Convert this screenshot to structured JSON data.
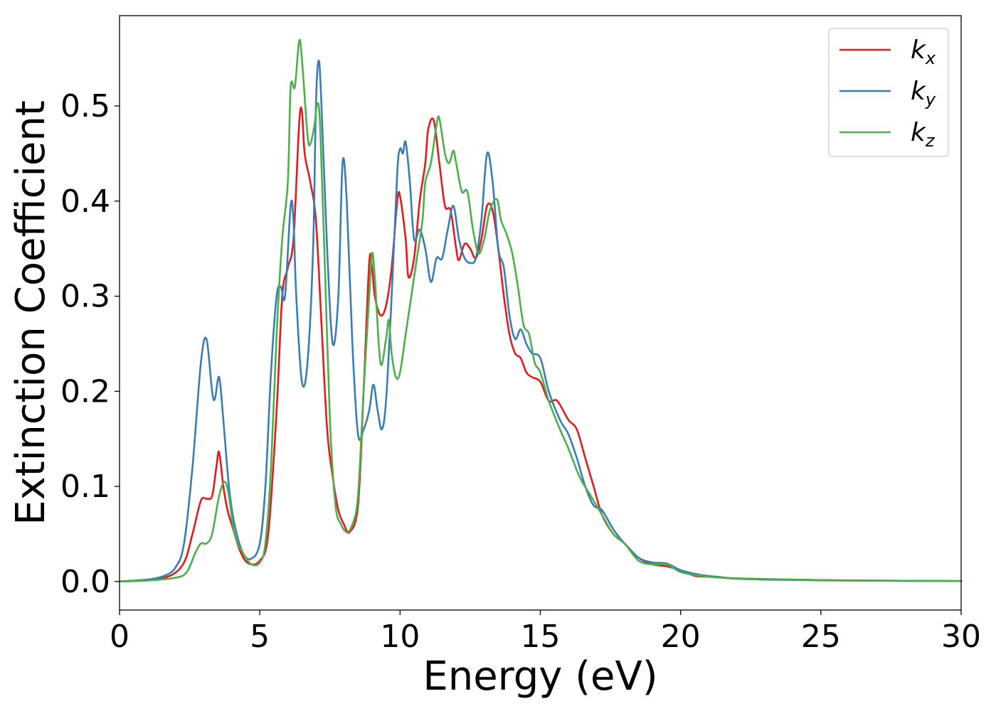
{
  "chart_data": {
    "type": "line",
    "xlabel": "Energy (eV)",
    "ylabel": "Extinction Coefficient",
    "xlim": [
      0,
      30
    ],
    "ylim": [
      -0.03,
      0.595
    ],
    "x_ticks": [
      "0",
      "5",
      "10",
      "15",
      "20",
      "25",
      "30"
    ],
    "y_ticks": [
      "0.0",
      "0.1",
      "0.2",
      "0.3",
      "0.4",
      "0.5"
    ],
    "grid": false,
    "legend_position": "top-right",
    "series": [
      {
        "name": "kx",
        "label_base": "k",
        "label_sub": "x",
        "color": "#e41a1c",
        "points": [
          [
            0,
            0
          ],
          [
            1,
            0.002
          ],
          [
            1.8,
            0.006
          ],
          [
            2.3,
            0.02
          ],
          [
            2.6,
            0.05
          ],
          [
            2.9,
            0.085
          ],
          [
            3.1,
            0.087
          ],
          [
            3.3,
            0.09
          ],
          [
            3.45,
            0.12
          ],
          [
            3.55,
            0.136
          ],
          [
            3.7,
            0.1
          ],
          [
            3.85,
            0.075
          ],
          [
            4.0,
            0.06
          ],
          [
            4.3,
            0.032
          ],
          [
            4.6,
            0.019
          ],
          [
            5.0,
            0.022
          ],
          [
            5.3,
            0.05
          ],
          [
            5.6,
            0.18
          ],
          [
            5.8,
            0.3
          ],
          [
            6.0,
            0.33
          ],
          [
            6.2,
            0.36
          ],
          [
            6.4,
            0.48
          ],
          [
            6.5,
            0.495
          ],
          [
            6.6,
            0.45
          ],
          [
            6.8,
            0.42
          ],
          [
            7.0,
            0.38
          ],
          [
            7.2,
            0.27
          ],
          [
            7.4,
            0.16
          ],
          [
            7.6,
            0.11
          ],
          [
            7.8,
            0.075
          ],
          [
            8.0,
            0.06
          ],
          [
            8.2,
            0.052
          ],
          [
            8.5,
            0.08
          ],
          [
            8.7,
            0.2
          ],
          [
            8.9,
            0.335
          ],
          [
            9.0,
            0.33
          ],
          [
            9.1,
            0.3
          ],
          [
            9.3,
            0.28
          ],
          [
            9.5,
            0.29
          ],
          [
            9.7,
            0.33
          ],
          [
            9.9,
            0.4
          ],
          [
            10.0,
            0.405
          ],
          [
            10.2,
            0.36
          ],
          [
            10.3,
            0.32
          ],
          [
            10.5,
            0.34
          ],
          [
            10.7,
            0.4
          ],
          [
            10.9,
            0.44
          ],
          [
            11.0,
            0.475
          ],
          [
            11.2,
            0.485
          ],
          [
            11.4,
            0.44
          ],
          [
            11.6,
            0.395
          ],
          [
            11.8,
            0.39
          ],
          [
            12.0,
            0.35
          ],
          [
            12.1,
            0.338
          ],
          [
            12.3,
            0.355
          ],
          [
            12.5,
            0.35
          ],
          [
            12.7,
            0.34
          ],
          [
            12.9,
            0.36
          ],
          [
            13.1,
            0.395
          ],
          [
            13.3,
            0.39
          ],
          [
            13.5,
            0.35
          ],
          [
            13.7,
            0.3
          ],
          [
            13.9,
            0.26
          ],
          [
            14.1,
            0.24
          ],
          [
            14.3,
            0.235
          ],
          [
            14.5,
            0.22
          ],
          [
            14.7,
            0.215
          ],
          [
            15.0,
            0.21
          ],
          [
            15.3,
            0.19
          ],
          [
            15.6,
            0.19
          ],
          [
            16.0,
            0.17
          ],
          [
            16.3,
            0.16
          ],
          [
            16.6,
            0.13
          ],
          [
            16.9,
            0.1
          ],
          [
            17.2,
            0.07
          ],
          [
            17.6,
            0.05
          ],
          [
            18.0,
            0.04
          ],
          [
            18.5,
            0.025
          ],
          [
            19.0,
            0.018
          ],
          [
            19.5,
            0.016
          ],
          [
            20.0,
            0.012
          ],
          [
            20.5,
            0.006
          ],
          [
            21,
            0.005
          ],
          [
            22,
            0.003
          ],
          [
            23,
            0.0025
          ],
          [
            25,
            0.0015
          ],
          [
            28,
            0.0008
          ],
          [
            30,
            0.0005
          ]
        ]
      },
      {
        "name": "ky",
        "label_base": "k",
        "label_sub": "y",
        "color": "#377eb8",
        "points": [
          [
            0,
            0
          ],
          [
            1,
            0.002
          ],
          [
            1.6,
            0.006
          ],
          [
            2.0,
            0.015
          ],
          [
            2.3,
            0.04
          ],
          [
            2.6,
            0.12
          ],
          [
            2.9,
            0.23
          ],
          [
            3.1,
            0.255
          ],
          [
            3.3,
            0.2
          ],
          [
            3.4,
            0.192
          ],
          [
            3.55,
            0.215
          ],
          [
            3.7,
            0.17
          ],
          [
            3.9,
            0.1
          ],
          [
            4.1,
            0.06
          ],
          [
            4.4,
            0.03
          ],
          [
            4.7,
            0.024
          ],
          [
            5.0,
            0.04
          ],
          [
            5.2,
            0.1
          ],
          [
            5.4,
            0.22
          ],
          [
            5.6,
            0.3
          ],
          [
            5.75,
            0.31
          ],
          [
            5.9,
            0.3
          ],
          [
            6.1,
            0.395
          ],
          [
            6.2,
            0.38
          ],
          [
            6.3,
            0.3
          ],
          [
            6.5,
            0.21
          ],
          [
            6.7,
            0.23
          ],
          [
            6.9,
            0.35
          ],
          [
            7.0,
            0.5
          ],
          [
            7.1,
            0.548
          ],
          [
            7.2,
            0.5
          ],
          [
            7.4,
            0.35
          ],
          [
            7.6,
            0.25
          ],
          [
            7.8,
            0.3
          ],
          [
            7.95,
            0.44
          ],
          [
            8.1,
            0.4
          ],
          [
            8.3,
            0.25
          ],
          [
            8.5,
            0.155
          ],
          [
            8.7,
            0.16
          ],
          [
            8.9,
            0.18
          ],
          [
            9.05,
            0.207
          ],
          [
            9.2,
            0.18
          ],
          [
            9.35,
            0.16
          ],
          [
            9.5,
            0.19
          ],
          [
            9.7,
            0.3
          ],
          [
            9.9,
            0.43
          ],
          [
            10.0,
            0.455
          ],
          [
            10.1,
            0.45
          ],
          [
            10.2,
            0.462
          ],
          [
            10.35,
            0.42
          ],
          [
            10.5,
            0.36
          ],
          [
            10.7,
            0.37
          ],
          [
            10.9,
            0.35
          ],
          [
            11.1,
            0.315
          ],
          [
            11.3,
            0.34
          ],
          [
            11.5,
            0.34
          ],
          [
            11.7,
            0.37
          ],
          [
            11.9,
            0.395
          ],
          [
            12.1,
            0.36
          ],
          [
            12.3,
            0.34
          ],
          [
            12.5,
            0.335
          ],
          [
            12.7,
            0.34
          ],
          [
            12.9,
            0.38
          ],
          [
            13.1,
            0.45
          ],
          [
            13.3,
            0.42
          ],
          [
            13.5,
            0.35
          ],
          [
            13.7,
            0.33
          ],
          [
            13.9,
            0.28
          ],
          [
            14.1,
            0.255
          ],
          [
            14.3,
            0.265
          ],
          [
            14.5,
            0.25
          ],
          [
            14.7,
            0.24
          ],
          [
            15.0,
            0.235
          ],
          [
            15.3,
            0.2
          ],
          [
            15.7,
            0.17
          ],
          [
            16.0,
            0.155
          ],
          [
            16.3,
            0.13
          ],
          [
            16.6,
            0.1
          ],
          [
            16.9,
            0.08
          ],
          [
            17.2,
            0.075
          ],
          [
            17.6,
            0.055
          ],
          [
            18.0,
            0.04
          ],
          [
            18.5,
            0.025
          ],
          [
            19.0,
            0.02
          ],
          [
            19.5,
            0.019
          ],
          [
            20.0,
            0.012
          ],
          [
            20.7,
            0.007
          ],
          [
            21.3,
            0.005
          ],
          [
            22,
            0.003
          ],
          [
            23,
            0.002
          ],
          [
            25,
            0.0012
          ],
          [
            28,
            0.0006
          ],
          [
            30,
            0.0004
          ]
        ]
      },
      {
        "name": "kz",
        "label_base": "k",
        "label_sub": "z",
        "color": "#4daf4a",
        "points": [
          [
            0,
            0
          ],
          [
            1,
            0.001
          ],
          [
            2,
            0.004
          ],
          [
            2.4,
            0.01
          ],
          [
            2.7,
            0.03
          ],
          [
            2.9,
            0.04
          ],
          [
            3.1,
            0.04
          ],
          [
            3.3,
            0.05
          ],
          [
            3.55,
            0.09
          ],
          [
            3.75,
            0.105
          ],
          [
            3.9,
            0.09
          ],
          [
            4.1,
            0.05
          ],
          [
            4.4,
            0.03
          ],
          [
            4.7,
            0.018
          ],
          [
            5.0,
            0.02
          ],
          [
            5.2,
            0.04
          ],
          [
            5.4,
            0.12
          ],
          [
            5.6,
            0.26
          ],
          [
            5.8,
            0.36
          ],
          [
            6.0,
            0.42
          ],
          [
            6.1,
            0.52
          ],
          [
            6.25,
            0.52
          ],
          [
            6.4,
            0.568
          ],
          [
            6.5,
            0.55
          ],
          [
            6.7,
            0.47
          ],
          [
            6.8,
            0.46
          ],
          [
            6.95,
            0.48
          ],
          [
            7.05,
            0.503
          ],
          [
            7.15,
            0.48
          ],
          [
            7.3,
            0.35
          ],
          [
            7.5,
            0.17
          ],
          [
            7.7,
            0.08
          ],
          [
            7.9,
            0.06
          ],
          [
            8.1,
            0.052
          ],
          [
            8.3,
            0.06
          ],
          [
            8.5,
            0.09
          ],
          [
            8.7,
            0.2
          ],
          [
            8.9,
            0.3
          ],
          [
            9.0,
            0.345
          ],
          [
            9.1,
            0.32
          ],
          [
            9.3,
            0.23
          ],
          [
            9.5,
            0.255
          ],
          [
            9.6,
            0.275
          ],
          [
            9.7,
            0.24
          ],
          [
            9.85,
            0.215
          ],
          [
            10.0,
            0.22
          ],
          [
            10.2,
            0.26
          ],
          [
            10.4,
            0.3
          ],
          [
            10.6,
            0.34
          ],
          [
            10.8,
            0.38
          ],
          [
            10.9,
            0.42
          ],
          [
            11.1,
            0.44
          ],
          [
            11.3,
            0.48
          ],
          [
            11.4,
            0.487
          ],
          [
            11.6,
            0.45
          ],
          [
            11.75,
            0.44
          ],
          [
            11.9,
            0.453
          ],
          [
            12.0,
            0.44
          ],
          [
            12.2,
            0.41
          ],
          [
            12.4,
            0.41
          ],
          [
            12.6,
            0.37
          ],
          [
            12.8,
            0.345
          ],
          [
            13.0,
            0.36
          ],
          [
            13.2,
            0.39
          ],
          [
            13.45,
            0.402
          ],
          [
            13.6,
            0.38
          ],
          [
            13.8,
            0.365
          ],
          [
            14.0,
            0.345
          ],
          [
            14.2,
            0.31
          ],
          [
            14.4,
            0.27
          ],
          [
            14.6,
            0.26
          ],
          [
            14.8,
            0.23
          ],
          [
            15.0,
            0.22
          ],
          [
            15.3,
            0.19
          ],
          [
            15.7,
            0.16
          ],
          [
            16.0,
            0.14
          ],
          [
            16.4,
            0.11
          ],
          [
            16.8,
            0.09
          ],
          [
            17.2,
            0.07
          ],
          [
            17.6,
            0.05
          ],
          [
            18.0,
            0.04
          ],
          [
            18.5,
            0.022
          ],
          [
            19.0,
            0.018
          ],
          [
            19.5,
            0.018
          ],
          [
            20.0,
            0.01
          ],
          [
            20.7,
            0.006
          ],
          [
            21.5,
            0.004
          ],
          [
            22.5,
            0.003
          ],
          [
            24,
            0.002
          ],
          [
            26,
            0.0012
          ],
          [
            30,
            0.0005
          ]
        ]
      }
    ]
  }
}
